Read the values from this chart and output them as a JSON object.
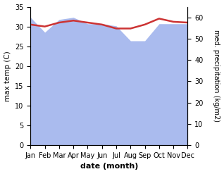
{
  "months": [
    "Jan",
    "Feb",
    "Mar",
    "Apr",
    "May",
    "Jun",
    "Jul",
    "Aug",
    "Sep",
    "Oct",
    "Nov",
    "Dec"
  ],
  "month_indices": [
    0,
    1,
    2,
    3,
    4,
    5,
    6,
    7,
    8,
    9,
    10,
    11
  ],
  "temp_max": [
    30.5,
    30.0,
    31.0,
    31.5,
    31.0,
    30.5,
    29.5,
    29.5,
    30.5,
    32.0,
    31.2,
    31.0
  ],
  "precip": [
    60,
    53,
    59,
    60,
    57,
    57,
    56,
    49,
    49,
    57,
    57,
    57
  ],
  "temp_color": "#cc3333",
  "precip_color": "#aabbee",
  "ylabel_left": "max temp (C)",
  "ylabel_right": "med. precipitation (kg/m2)",
  "xlabel": "date (month)",
  "ylim_left": [
    0,
    35
  ],
  "ylim_right": [
    0,
    65
  ],
  "yticks_left": [
    0,
    5,
    10,
    15,
    20,
    25,
    30,
    35
  ],
  "yticks_right": [
    0,
    10,
    20,
    30,
    40,
    50,
    60
  ],
  "temp_linewidth": 1.8,
  "background_color": "#ffffff"
}
